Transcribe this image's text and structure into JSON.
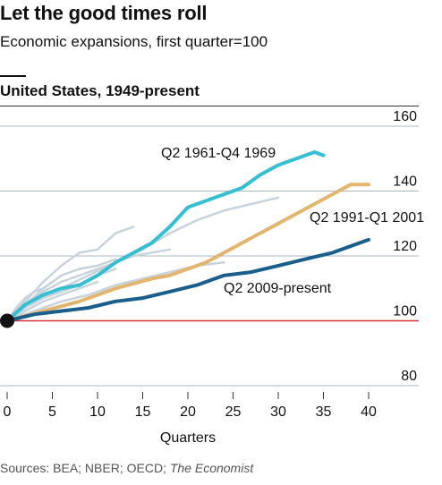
{
  "header": {
    "title": "Let the good times roll",
    "subtitle": "Economic expansions, first quarter=100",
    "section": "United States, 1949-present"
  },
  "footer": {
    "sources_prefix": "Sources: BEA; NBER; OECD; ",
    "sources_publisher": "The Economist"
  },
  "chart_data": {
    "type": "line",
    "title": "Let the good times roll",
    "subtitle": "Economic expansions, first quarter=100",
    "xlabel": "Quarters",
    "ylabel": "",
    "xlim": [
      0,
      40
    ],
    "ylim": [
      80,
      160
    ],
    "x_ticks": [
      0,
      5,
      10,
      15,
      20,
      25,
      30,
      35,
      40
    ],
    "y_ticks": [
      80,
      100,
      120,
      140,
      160
    ],
    "baseline": 100,
    "grid": "horizontal",
    "colors": {
      "highlight_1961": "#36bfd0",
      "highlight_1991": "#e2b66e",
      "highlight_2009": "#1a5e8c",
      "other": "#c8d3db",
      "baseline": "#d6313a",
      "grid": "#a9b8c4"
    },
    "annotations": [
      {
        "text": "Q2 1961-Q4 1969",
        "series": "Q2 1961-Q4 1969"
      },
      {
        "text": "Q2 1991-Q1 2001",
        "series": "Q2 1991-Q1 2001"
      },
      {
        "text": "Q2 2009-present",
        "series": "Q2 2009-present"
      }
    ],
    "background_series": [
      {
        "x": [
          0,
          2,
          4,
          6,
          8,
          10,
          12,
          14
        ],
        "values": [
          100,
          106,
          112,
          117,
          121,
          122,
          127,
          129
        ]
      },
      {
        "x": [
          0,
          2,
          4,
          6,
          8,
          10,
          12,
          14,
          16,
          18
        ],
        "values": [
          100,
          105,
          109,
          112,
          114,
          116,
          118,
          120,
          121,
          122
        ]
      },
      {
        "x": [
          0,
          3,
          6,
          9,
          12,
          15,
          18,
          21,
          24,
          27,
          30
        ],
        "values": [
          100,
          106,
          110,
          114,
          118,
          122,
          127,
          131,
          134,
          136,
          138
        ]
      },
      {
        "x": [
          0,
          2,
          4,
          6,
          8,
          10,
          12
        ],
        "values": [
          100,
          105,
          110,
          114,
          116,
          117,
          119
        ]
      },
      {
        "x": [
          0,
          3,
          6,
          9,
          12,
          15,
          18,
          21,
          24
        ],
        "values": [
          100,
          103,
          106,
          108,
          111,
          113,
          115,
          117,
          118
        ]
      },
      {
        "x": [
          0,
          2,
          4,
          6,
          8,
          10,
          12
        ],
        "values": [
          100,
          104,
          107,
          109,
          111,
          114,
          116
        ]
      },
      {
        "x": [
          0,
          2,
          4,
          6,
          8,
          10
        ],
        "values": [
          100,
          103,
          106,
          108,
          110,
          112
        ]
      },
      {
        "x": [
          0,
          1,
          2,
          3,
          4,
          5
        ],
        "values": [
          100,
          104,
          107,
          109,
          110,
          112
        ]
      }
    ],
    "series": [
      {
        "name": "Q2 1961-Q4 1969",
        "x": [
          0,
          2,
          4,
          6,
          8,
          10,
          12,
          14,
          16,
          18,
          20,
          22,
          24,
          26,
          28,
          30,
          32,
          34,
          35
        ],
        "values": [
          100,
          105,
          108,
          110,
          111,
          114,
          118,
          121,
          124,
          129,
          135,
          137,
          139,
          141,
          145,
          148,
          150,
          152,
          151
        ]
      },
      {
        "name": "Q2 1991-Q1 2001",
        "x": [
          0,
          4,
          8,
          12,
          16,
          18,
          20,
          22,
          24,
          26,
          28,
          30,
          32,
          34,
          36,
          38,
          40
        ],
        "values": [
          100,
          103,
          106,
          110,
          113,
          114,
          116,
          118,
          121,
          124,
          127,
          130,
          133,
          136,
          139,
          142,
          142
        ]
      },
      {
        "name": "Q2 2009-present",
        "x": [
          0,
          3,
          6,
          9,
          12,
          15,
          18,
          21,
          24,
          27,
          30,
          33,
          36,
          38,
          40
        ],
        "values": [
          100,
          102,
          103,
          104,
          106,
          107,
          109,
          111,
          114,
          115,
          117,
          119,
          121,
          123,
          125
        ]
      }
    ]
  }
}
